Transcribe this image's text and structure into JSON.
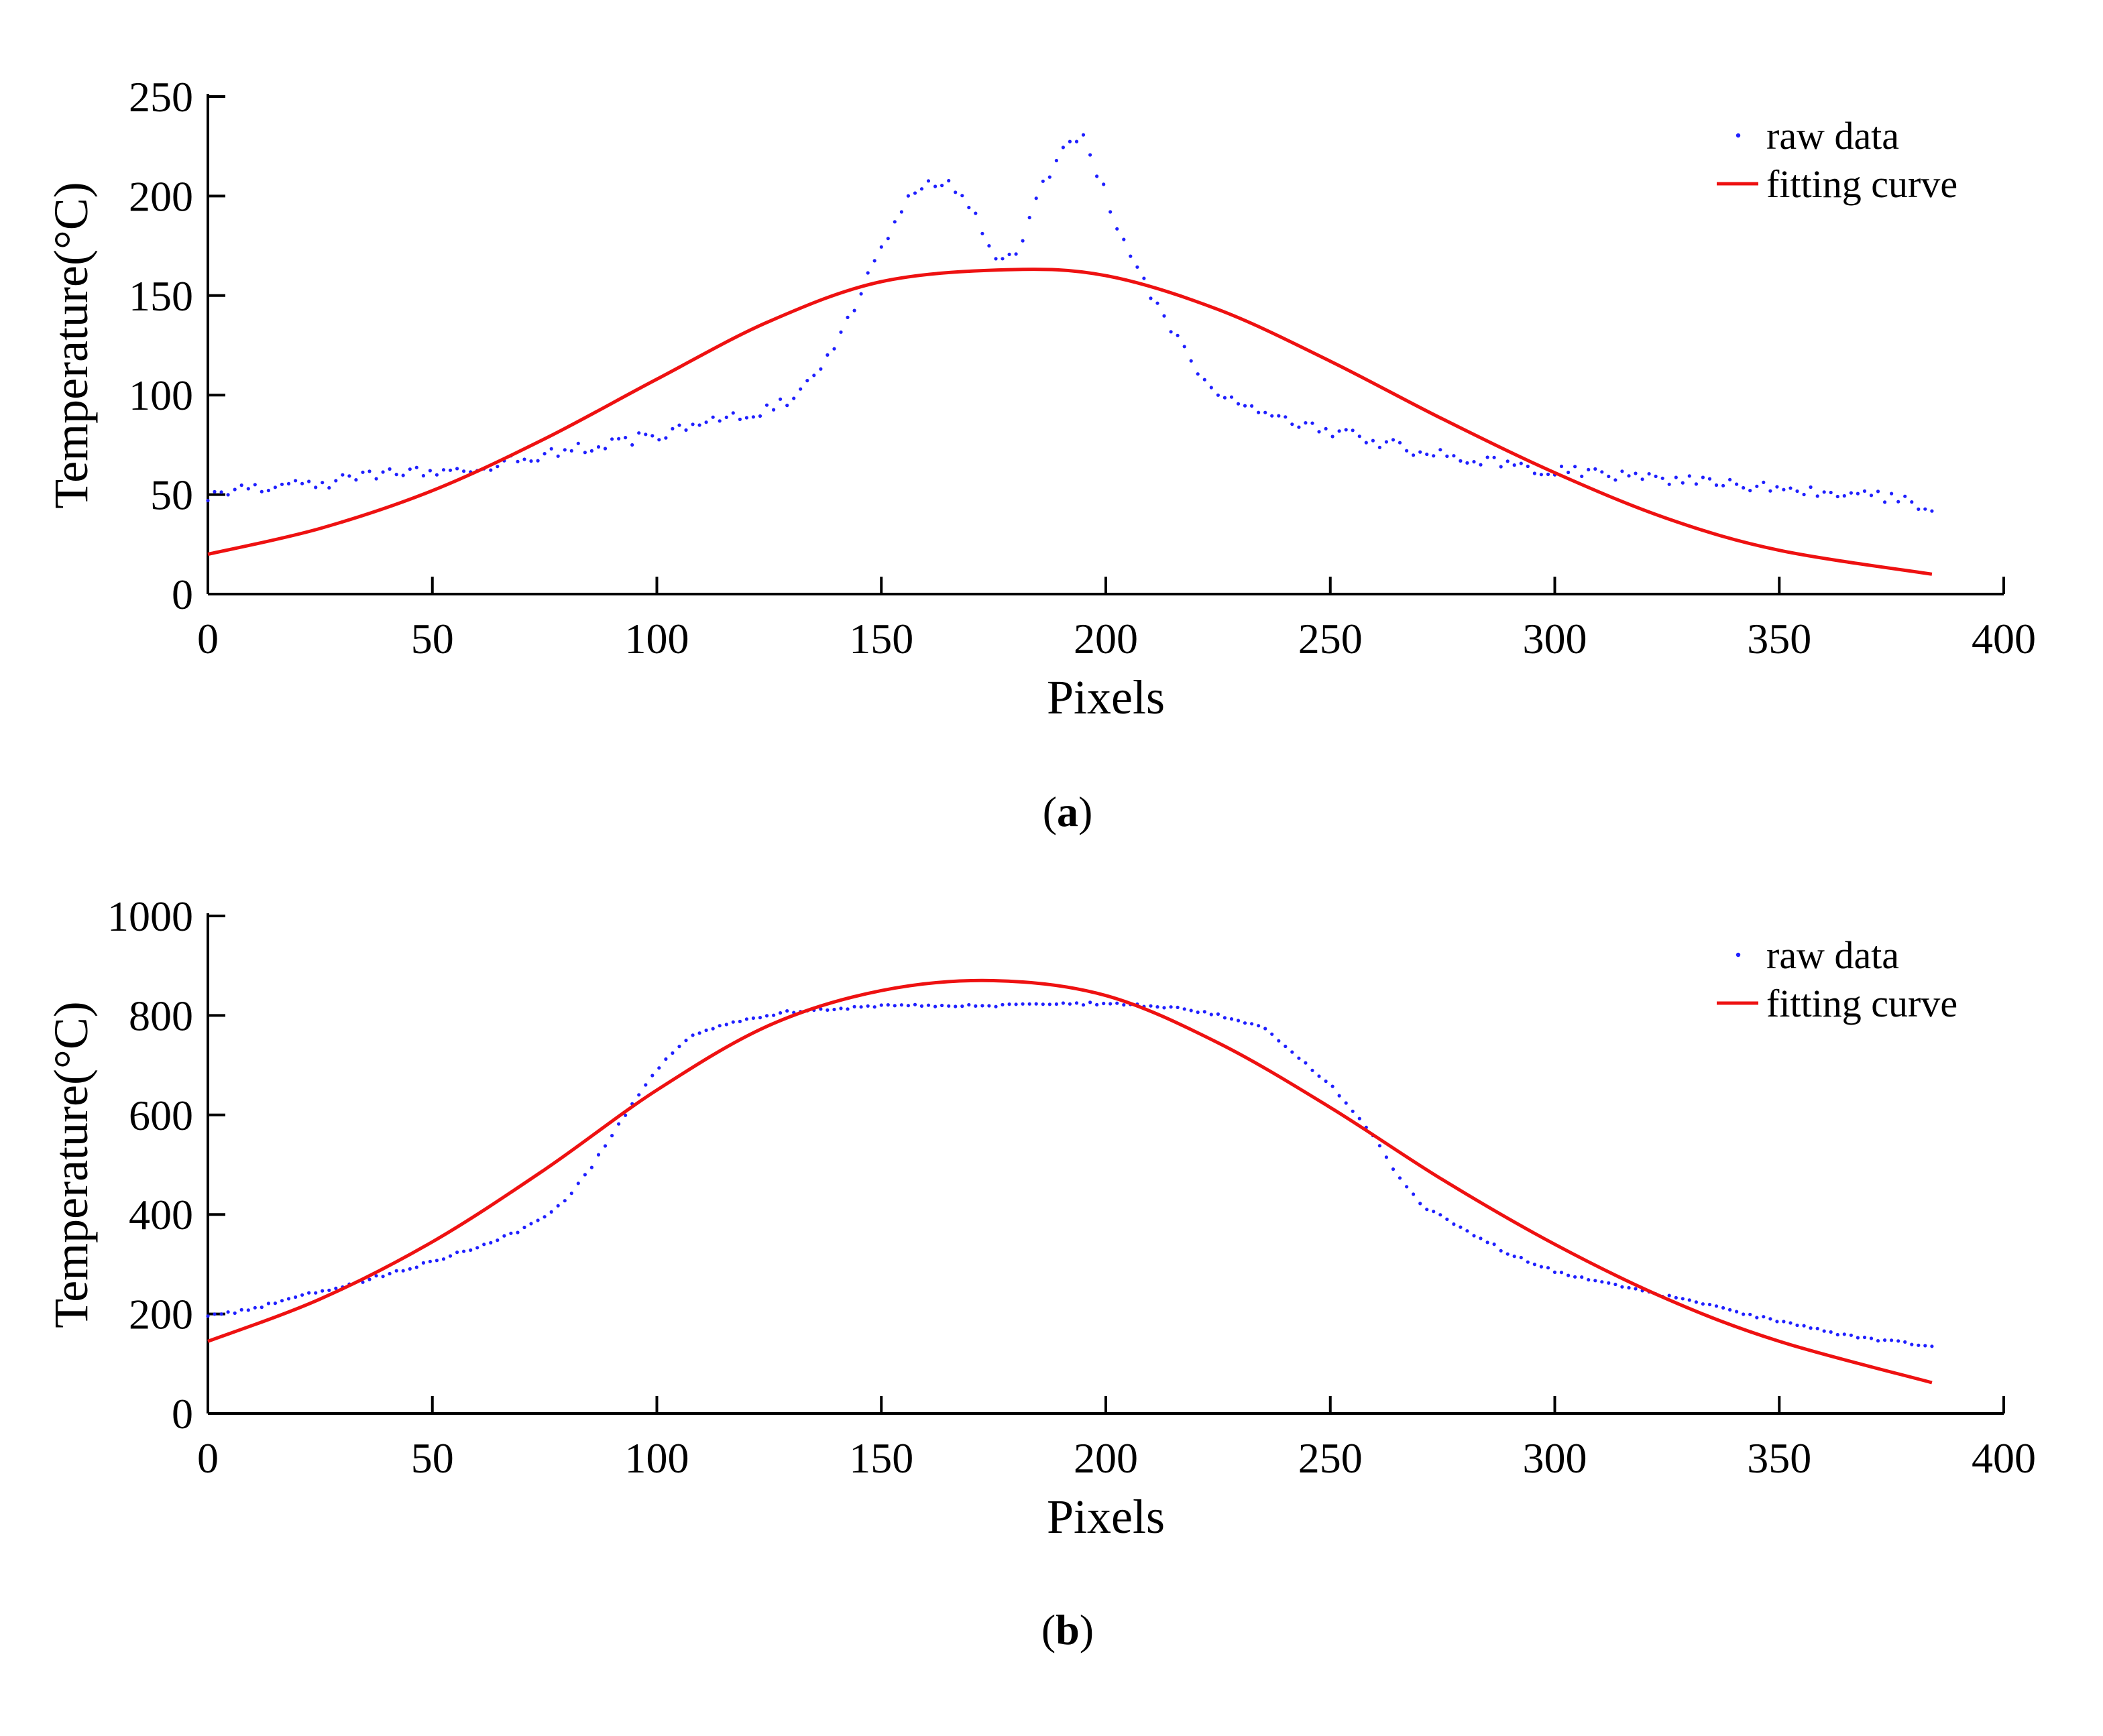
{
  "figure": {
    "panels": [
      {
        "caption_letter": "a",
        "legend": {
          "raw": "raw data",
          "fit": "fitting curve"
        },
        "colors": {
          "raw": "#1f1fff",
          "fit": "#ee1111",
          "axis": "#000000"
        },
        "chart_data": {
          "type": "scatter",
          "xlabel": "Pixels",
          "ylabel": "Temperature(°C)",
          "xlim": [
            0,
            400
          ],
          "ylim": [
            0,
            250
          ],
          "xticks": [
            0,
            50,
            100,
            150,
            200,
            250,
            300,
            350,
            400
          ],
          "yticks": [
            0,
            50,
            100,
            150,
            200,
            250
          ],
          "grid": false,
          "legend_position": "top-right",
          "series": [
            {
              "name": "raw data",
              "kind": "points",
              "x": [
                0,
                10,
                20,
                30,
                40,
                50,
                60,
                70,
                80,
                90,
                100,
                110,
                120,
                125,
                130,
                135,
                140,
                145,
                150,
                155,
                160,
                165,
                170,
                175,
                180,
                185,
                190,
                195,
                200,
                205,
                210,
                215,
                220,
                225,
                230,
                240,
                250,
                260,
                270,
                280,
                290,
                300,
                310,
                320,
                330,
                340,
                350,
                360,
                370,
                380,
                384
              ],
              "y": [
                50,
                53,
                55,
                57,
                60,
                62,
                64,
                68,
                72,
                76,
                80,
                85,
                90,
                93,
                97,
                108,
                125,
                150,
                172,
                195,
                207,
                208,
                195,
                170,
                168,
                200,
                225,
                230,
                200,
                170,
                150,
                130,
                115,
                100,
                95,
                88,
                82,
                77,
                72,
                68,
                65,
                62,
                60,
                58,
                57,
                55,
                53,
                52,
                50,
                46,
                44
              ]
            },
            {
              "name": "fitting curve",
              "kind": "line",
              "x": [
                0,
                25,
                50,
                75,
                100,
                125,
                150,
                178,
                200,
                225,
                250,
                275,
                300,
                325,
                350,
                384
              ],
              "y": [
                20,
                33,
                52,
                78,
                108,
                137,
                157,
                163,
                160,
                143,
                117,
                88,
                61,
                38,
                22,
                10
              ]
            }
          ]
        }
      },
      {
        "caption_letter": "b",
        "legend": {
          "raw": "raw data",
          "fit": "fitting curve"
        },
        "colors": {
          "raw": "#1f1fff",
          "fit": "#ee1111",
          "axis": "#000000"
        },
        "chart_data": {
          "type": "scatter",
          "xlabel": "Pixels",
          "ylabel": "Temperature(°C)",
          "xlim": [
            0,
            400
          ],
          "ylim": [
            0,
            1000
          ],
          "xticks": [
            0,
            50,
            100,
            150,
            200,
            250,
            300,
            350,
            400
          ],
          "yticks": [
            0,
            200,
            400,
            600,
            800,
            1000
          ],
          "grid": false,
          "legend_position": "top-right",
          "series": [
            {
              "name": "raw data",
              "kind": "points",
              "x": [
                0,
                10,
                20,
                30,
                40,
                50,
                60,
                70,
                75,
                80,
                85,
                90,
                95,
                100,
                105,
                110,
                120,
                130,
                140,
                150,
                160,
                170,
                180,
                190,
                200,
                210,
                220,
                230,
                235,
                240,
                245,
                250,
                255,
                260,
                265,
                270,
                280,
                290,
                300,
                310,
                320,
                330,
                340,
                350,
                360,
                370,
                384
              ],
              "y": [
                195,
                210,
                235,
                255,
                280,
                305,
                335,
                370,
                395,
                430,
                490,
                560,
                630,
                690,
                740,
                770,
                790,
                808,
                815,
                818,
                820,
                820,
                820,
                822,
                825,
                820,
                810,
                790,
                775,
                740,
                700,
                660,
                610,
                550,
                480,
                420,
                370,
                320,
                285,
                265,
                245,
                225,
                205,
                185,
                165,
                150,
                135
              ]
            },
            {
              "name": "fitting curve",
              "kind": "line",
              "x": [
                0,
                25,
                50,
                75,
                100,
                125,
                150,
                175,
                200,
                225,
                250,
                275,
                300,
                325,
                350,
                384
              ],
              "y": [
                145,
                230,
                345,
                490,
                650,
                780,
                850,
                870,
                840,
                745,
                615,
                470,
                340,
                230,
                145,
                62
              ]
            }
          ]
        }
      }
    ]
  }
}
